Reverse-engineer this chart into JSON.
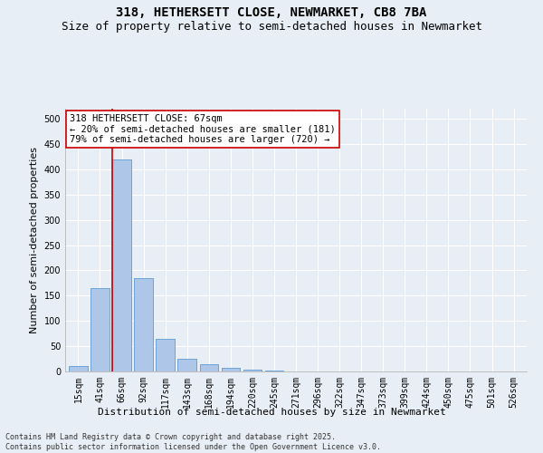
{
  "title": "318, HETHERSETT CLOSE, NEWMARKET, CB8 7BA",
  "subtitle": "Size of property relative to semi-detached houses in Newmarket",
  "xlabel": "Distribution of semi-detached houses by size in Newmarket",
  "ylabel": "Number of semi-detached properties",
  "categories": [
    "15sqm",
    "41sqm",
    "66sqm",
    "92sqm",
    "117sqm",
    "143sqm",
    "168sqm",
    "194sqm",
    "220sqm",
    "245sqm",
    "271sqm",
    "296sqm",
    "322sqm",
    "347sqm",
    "373sqm",
    "399sqm",
    "424sqm",
    "450sqm",
    "475sqm",
    "501sqm",
    "526sqm"
  ],
  "values": [
    10,
    165,
    420,
    185,
    65,
    25,
    14,
    7,
    3,
    1,
    0,
    0,
    0,
    0,
    0,
    0,
    0,
    0,
    0,
    0,
    0
  ],
  "bar_color": "#aec6e8",
  "bar_edge_color": "#5b9bd5",
  "vline_color": "#cc0000",
  "vline_x_index": 2,
  "annotation_text": "318 HETHERSETT CLOSE: 67sqm\n← 20% of semi-detached houses are smaller (181)\n79% of semi-detached houses are larger (720) →",
  "annotation_box_color": "#ffffff",
  "annotation_box_edge": "#cc0000",
  "ylim": [
    0,
    520
  ],
  "yticks": [
    0,
    50,
    100,
    150,
    200,
    250,
    300,
    350,
    400,
    450,
    500
  ],
  "background_color": "#e8eef5",
  "grid_color": "#ffffff",
  "footer": "Contains HM Land Registry data © Crown copyright and database right 2025.\nContains public sector information licensed under the Open Government Licence v3.0.",
  "title_fontsize": 10,
  "subtitle_fontsize": 9,
  "axis_label_fontsize": 8,
  "tick_fontsize": 7,
  "annotation_fontsize": 7.5,
  "footer_fontsize": 6
}
